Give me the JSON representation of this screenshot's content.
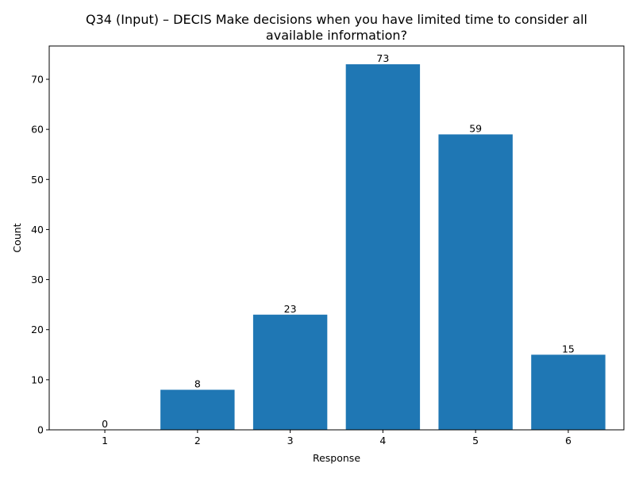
{
  "chart_data": {
    "type": "bar",
    "title_lines": [
      "Q34 (Input) – DECIS Make decisions when you have limited time to consider all",
      "available information?"
    ],
    "xlabel": "Response",
    "ylabel": "Count",
    "categories": [
      "1",
      "2",
      "3",
      "4",
      "5",
      "6"
    ],
    "values": [
      0,
      8,
      23,
      73,
      59,
      15
    ],
    "ylim": [
      0,
      76.65
    ],
    "yticks": [
      0,
      10,
      20,
      30,
      40,
      50,
      60,
      70
    ],
    "bar_color": "#1f77b4",
    "grid": false,
    "legend": "none"
  }
}
